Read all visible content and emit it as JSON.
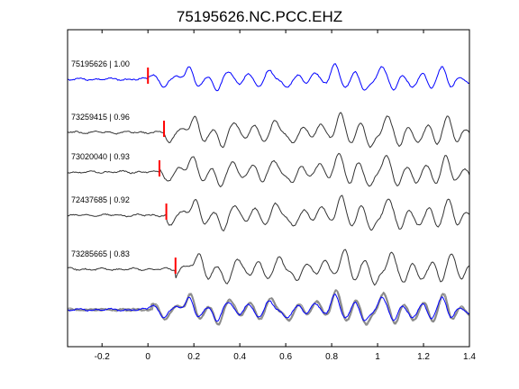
{
  "chart_data": {
    "type": "line",
    "title": "75195626.NC.PCC.EHZ",
    "xlabel": "",
    "ylabel": "",
    "xlim": [
      -0.35,
      1.4
    ],
    "xticks": [
      -0.2,
      0,
      0.2,
      0.4,
      0.6,
      0.8,
      1,
      1.2,
      1.4
    ],
    "xtick_labels": [
      "-0.2",
      "0",
      "0.2",
      "0.4",
      "0.6",
      "0.8",
      "1",
      "1.2",
      "1.4"
    ],
    "grid": false,
    "colors": {
      "reference": "#0000ff",
      "trace": "#333333",
      "overlay": "#8a8a8a",
      "pick": "#ff0000",
      "axis": "#000000"
    },
    "series": [
      {
        "label": "75195626 | 1.00",
        "pick": 0.0,
        "reference": true
      },
      {
        "label": "73259415 | 0.96",
        "pick": 0.07,
        "reference": false
      },
      {
        "label": "73020040 | 0.93",
        "pick": 0.05,
        "reference": false
      },
      {
        "label": "72437685 | 0.92",
        "pick": 0.08,
        "reference": false
      },
      {
        "label": "73285665 | 0.83",
        "pick": 0.12,
        "reference": false
      }
    ],
    "overlay": "all traces stacked"
  }
}
